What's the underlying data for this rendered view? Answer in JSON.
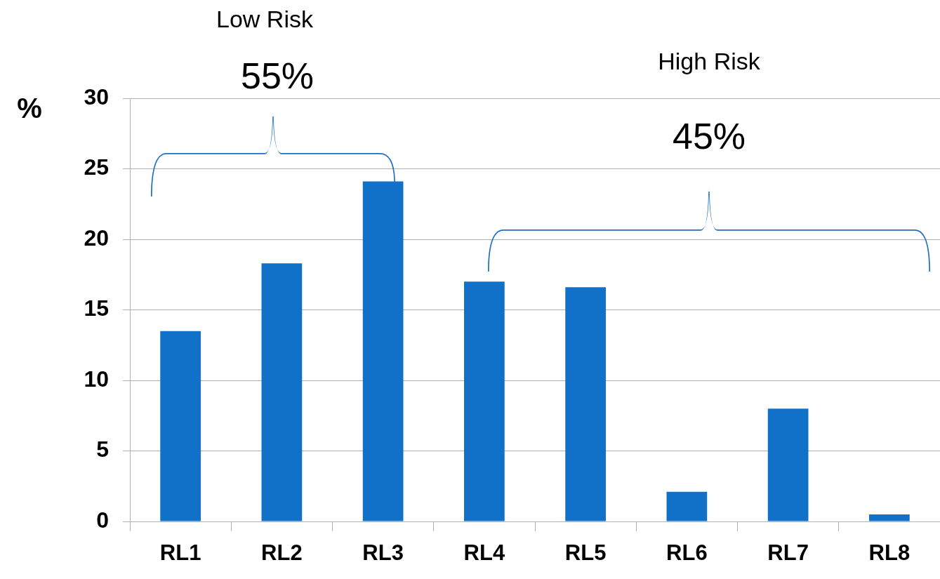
{
  "chart_data": {
    "type": "bar",
    "ylabel": "%",
    "categories": [
      "RL1",
      "RL2",
      "RL3",
      "RL4",
      "RL5",
      "RL6",
      "RL7",
      "RL8"
    ],
    "values": [
      13.5,
      18.3,
      24.1,
      17.0,
      16.6,
      2.1,
      8.0,
      0.5
    ],
    "color": "#1170c8",
    "ylim": [
      0,
      30
    ],
    "yticks": [
      0,
      5,
      10,
      15,
      20,
      25,
      30
    ],
    "grid": "y",
    "annotations": [
      "Low Risk",
      "55%",
      "High Risk",
      "45%"
    ]
  }
}
